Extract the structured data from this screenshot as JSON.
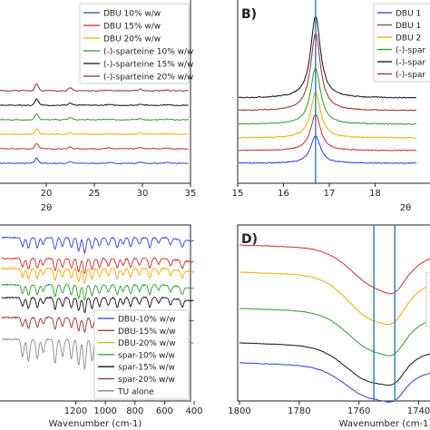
{
  "colors": {
    "blue": "#2f3fd6",
    "red": "#cc2b2b",
    "orange": "#f2a900",
    "green": "#2a9b2a",
    "black": "#111111",
    "darkred": "#9a2b2b",
    "gray": "#8a8a8a",
    "vline": "#2a7bb5"
  },
  "chart_data": [
    {
      "panel": "A",
      "type": "line",
      "xlabel": "2θ",
      "ylabel": "",
      "xlim": [
        15,
        35
      ],
      "xticks": [
        "20",
        "25",
        "30",
        "35"
      ],
      "legend_position": "top-right",
      "series": [
        {
          "name": "DBU 10% w/w",
          "color": "blue",
          "peaks": [
            [
              19.0,
              6
            ],
            [
              22.5,
              2
            ],
            [
              29.8,
              1.5
            ]
          ]
        },
        {
          "name": "DBU 15% w/w",
          "color": "red",
          "peaks": [
            [
              19.0,
              6
            ],
            [
              22.5,
              2
            ],
            [
              29.8,
              1.5
            ]
          ]
        },
        {
          "name": "DBU 20% w/w",
          "color": "orange",
          "peaks": [
            [
              19.0,
              6
            ],
            [
              22.5,
              2
            ],
            [
              29.8,
              1.5
            ]
          ]
        },
        {
          "name": "(-)-sparteine 10% w/w",
          "color": "green",
          "peaks": [
            [
              19.0,
              7
            ],
            [
              22.5,
              2.5
            ],
            [
              29.8,
              1.5
            ]
          ]
        },
        {
          "name": "(-)-sparteine 15% w/w",
          "color": "black",
          "peaks": [
            [
              19.0,
              7
            ],
            [
              22.5,
              2.5
            ],
            [
              29.8,
              1.5
            ]
          ]
        },
        {
          "name": "(-)-sparteine 20% w/w",
          "color": "darkred",
          "peaks": [
            [
              19.0,
              8
            ],
            [
              22.5,
              3
            ],
            [
              29.8,
              2
            ]
          ]
        }
      ]
    },
    {
      "panel": "B",
      "label": "B)",
      "type": "line",
      "xlabel": "2θ",
      "ylabel": "",
      "xlim": [
        15,
        20
      ],
      "xticks": [
        "15",
        "16",
        "17",
        "18",
        "20"
      ],
      "vline": 16.7,
      "legend_position": "top-right",
      "legend_entries": [
        "DBU 1",
        "DBU 1",
        "DBU 2",
        "(-)-spar",
        "(-)-spar",
        "(-)-spar"
      ],
      "series": [
        {
          "color": "blue",
          "peak": 16.7,
          "height": 30
        },
        {
          "color": "red",
          "peak": 16.7,
          "height": 40
        },
        {
          "color": "orange",
          "peak": 16.7,
          "height": 50
        },
        {
          "color": "green",
          "peak": 16.7,
          "height": 62
        },
        {
          "color": "darkred",
          "peak": 16.7,
          "height": 85
        },
        {
          "color": "black",
          "peak": 16.7,
          "height": 90
        }
      ]
    },
    {
      "panel": "C",
      "type": "line",
      "xlabel": "Wavenumber (cm-1)",
      "ylabel": "",
      "xlim": [
        1800,
        400
      ],
      "xticks": [
        "1200",
        "1000",
        "800",
        "600",
        "400"
      ],
      "legend_position": "bottom-right",
      "series": [
        {
          "name": "DBU-10% w/w",
          "color": "blue"
        },
        {
          "name": "DBU-15% w/w",
          "color": "red"
        },
        {
          "name": "DBU-20% w/w",
          "color": "orange"
        },
        {
          "name": "spar-10% w/w",
          "color": "green"
        },
        {
          "name": "spar-15% w/w",
          "color": "black"
        },
        {
          "name": "spar-20% w/w",
          "color": "darkred"
        },
        {
          "name": "TU alone",
          "color": "gray"
        }
      ]
    },
    {
      "panel": "D",
      "label": "D)",
      "type": "line",
      "xlabel": "Wavenumber (cm-1)",
      "ylabel": "",
      "xlim": [
        1800,
        1735
      ],
      "xticks": [
        "1800",
        "1780",
        "1760",
        "1740"
      ],
      "vlines": [
        1755,
        1748
      ],
      "series": [
        {
          "color": "red",
          "dip": 1753
        },
        {
          "color": "orange",
          "dip": 1754
        },
        {
          "color": "green",
          "dip": 1754
        },
        {
          "color": "black",
          "dip": 1755
        },
        {
          "color": "blue",
          "dip": 1755
        }
      ]
    }
  ]
}
